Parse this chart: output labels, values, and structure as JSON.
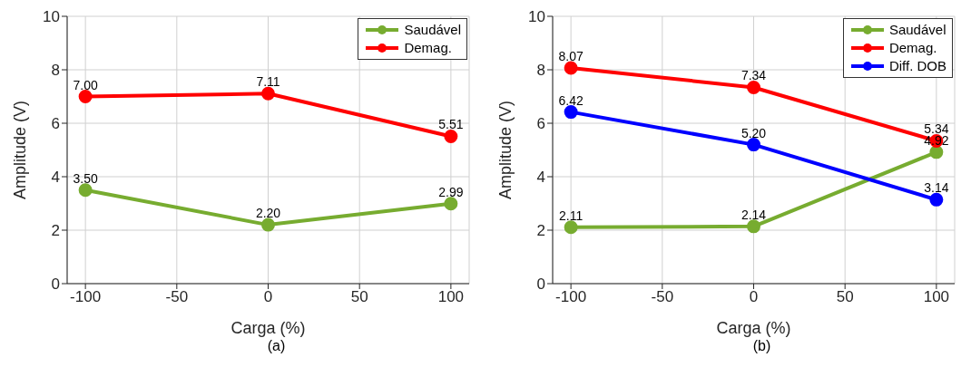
{
  "chart_data": [
    {
      "type": "line",
      "xlabel": "Carga (%)",
      "ylabel": "Amplitude  (V)",
      "x": [
        -100,
        0,
        100
      ],
      "xlim": [
        -110,
        110
      ],
      "xticks": [
        -100,
        -50,
        0,
        50,
        100
      ],
      "ylim": [
        0,
        10
      ],
      "yticks": [
        0,
        2,
        4,
        6,
        8,
        10
      ],
      "grid": true,
      "legend": "top right",
      "marker": "circle",
      "line_style": "solid",
      "annotations": [
        "(a)"
      ],
      "series": [
        {
          "name": "Saudável",
          "color": "#77ac30",
          "values": [
            3.5,
            2.2,
            2.99
          ],
          "value_labels": [
            "3.50",
            "2.20",
            "2.99"
          ]
        },
        {
          "name": "Demag.",
          "color": "#ff0000",
          "values": [
            7.0,
            7.11,
            5.51
          ],
          "value_labels": [
            "7.00",
            "7.11",
            "5.51"
          ]
        }
      ]
    },
    {
      "type": "line",
      "xlabel": "Carga (%)",
      "ylabel": "Amplitude  (V)",
      "x": [
        -100,
        0,
        100
      ],
      "xlim": [
        -110,
        110
      ],
      "xticks": [
        -100,
        -50,
        0,
        50,
        100
      ],
      "ylim": [
        0,
        10
      ],
      "yticks": [
        0,
        2,
        4,
        6,
        8,
        10
      ],
      "grid": true,
      "legend": "top right",
      "marker": "circle",
      "line_style": "solid",
      "annotations": [
        "(b)"
      ],
      "series": [
        {
          "name": "Saudável",
          "color": "#77ac30",
          "values": [
            2.11,
            2.14,
            4.92
          ],
          "value_labels": [
            "2.11",
            "2.14",
            "4.92"
          ]
        },
        {
          "name": "Demag.",
          "color": "#ff0000",
          "values": [
            8.07,
            7.34,
            5.34
          ],
          "value_labels": [
            "8.07",
            "7.34",
            "5.34"
          ]
        },
        {
          "name": "Diff. DOB",
          "color": "#0000ff",
          "values": [
            6.42,
            5.2,
            3.14
          ],
          "value_labels": [
            "6.42",
            "5.20",
            "3.14"
          ]
        }
      ]
    }
  ]
}
